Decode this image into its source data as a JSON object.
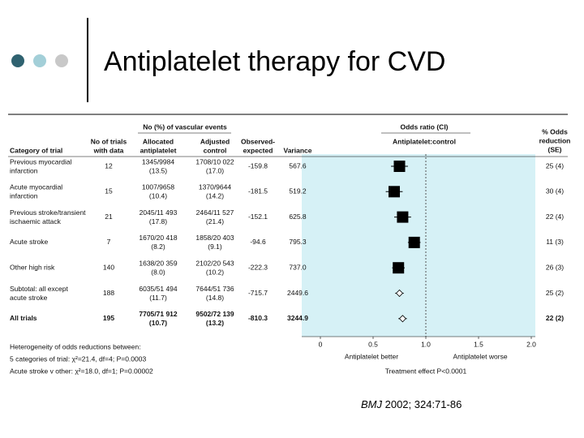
{
  "slide": {
    "title": "Antiplatelet therapy for CVD",
    "citation_journal": "BMJ",
    "citation_rest": " 2002; 324:71-86"
  },
  "chart_data": {
    "type": "forest",
    "group_header": "No (%) of vascular events",
    "or_header": "Odds ratio (CI)",
    "or_subheader": "Antiplatelet:control",
    "columns": [
      [
        "Category of trial"
      ],
      [
        "No of trials",
        "with data"
      ],
      [
        "Allocated",
        "antiplatelet"
      ],
      [
        "Adjusted",
        "control"
      ],
      [
        "Observed-",
        "expected"
      ],
      [
        "Variance"
      ]
    ],
    "reduction_header": [
      "% Odds",
      "reduction",
      "(SE)"
    ],
    "rows": [
      {
        "category": [
          "Previous myocardial",
          "infarction"
        ],
        "trials": "12",
        "allocated": [
          "1345/9984",
          "(13.5)"
        ],
        "control": [
          "1708/10 022",
          "(17.0)"
        ],
        "oe": "-159.8",
        "variance": "567.6",
        "reduction": "25 (4)",
        "or": 0.75,
        "ci": [
          0.67,
          0.83
        ],
        "marker": "square"
      },
      {
        "category": [
          "Acute myocardial",
          "infarction"
        ],
        "trials": "15",
        "allocated": [
          "1007/9658",
          "(10.4)"
        ],
        "control": [
          "1370/9644",
          "(14.2)"
        ],
        "oe": "-181.5",
        "variance": "519.2",
        "reduction": "30 (4)",
        "or": 0.7,
        "ci": [
          0.62,
          0.78
        ],
        "marker": "square"
      },
      {
        "category": [
          "Previous stroke/transient",
          "ischaemic attack"
        ],
        "trials": "21",
        "allocated": [
          "2045/11 493",
          "(17.8)"
        ],
        "control": [
          "2464/11 527",
          "(21.4)"
        ],
        "oe": "-152.1",
        "variance": "625.8",
        "reduction": "22 (4)",
        "or": 0.78,
        "ci": [
          0.7,
          0.86
        ],
        "marker": "square"
      },
      {
        "category": [
          "Acute stroke"
        ],
        "trials": "7",
        "allocated": [
          "1670/20 418",
          "(8.2)"
        ],
        "control": [
          "1858/20 403",
          "(9.1)"
        ],
        "oe": "-94.6",
        "variance": "795.3",
        "reduction": "11 (3)",
        "or": 0.89,
        "ci": [
          0.83,
          0.95
        ],
        "marker": "square"
      },
      {
        "category": [
          "Other high risk"
        ],
        "trials": "140",
        "allocated": [
          "1638/20 359",
          "(8.0)"
        ],
        "control": [
          "2102/20 543",
          "(10.2)"
        ],
        "oe": "-222.3",
        "variance": "737.0",
        "reduction": "26 (3)",
        "or": 0.74,
        "ci": [
          0.68,
          0.8
        ],
        "marker": "square"
      },
      {
        "category": [
          "Subtotal: all except",
          "acute stroke"
        ],
        "trials": "188",
        "allocated": [
          "6035/51 494",
          "(11.7)"
        ],
        "control": [
          "7644/51 736",
          "(14.8)"
        ],
        "oe": "-715.7",
        "variance": "2449.6",
        "reduction": "25 (2)",
        "or": 0.75,
        "ci": [
          0.71,
          0.79
        ],
        "marker": "diamond"
      },
      {
        "category": [
          "All trials"
        ],
        "trials": "195",
        "allocated": [
          "7705/71 912",
          "(10.7)"
        ],
        "control": [
          "9502/72 139",
          "(13.2)"
        ],
        "oe": "-810.3",
        "variance": "3244.9",
        "reduction": "22 (2)",
        "or": 0.78,
        "ci": [
          0.74,
          0.82
        ],
        "marker": "diamond"
      }
    ],
    "xlim": [
      0,
      2
    ],
    "xticks": [
      0,
      0.5,
      {
        "value": 1,
        "label": "1.0"
      },
      1.5,
      {
        "value": 2,
        "label": "2.0"
      }
    ],
    "reference": 1,
    "x_label_left": "Antiplatelet better",
    "x_label_right": "Antiplatelet worse",
    "x_title": "Treatment effect P<0.0001",
    "footnotes": [
      "Heterogeneity of odds reductions between:",
      "5 categories of trial: χ²=21.4, df=4; P=0.0003",
      "Acute stroke v other: χ²=18.0, df=1; P=0.00002"
    ],
    "plot_background": "#d6f1f6",
    "marker_color": "#000000"
  }
}
